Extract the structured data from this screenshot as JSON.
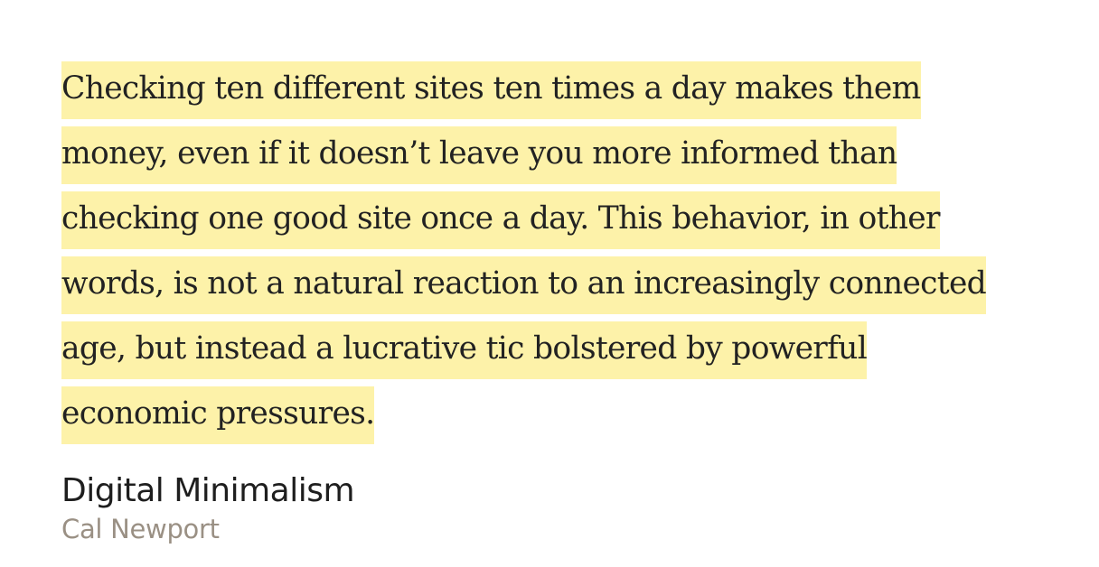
{
  "highlight": {
    "lines": [
      "Checking ten different sites ten times a day makes them",
      "money, even if it doesn’t leave you more informed than",
      "checking one good site once a day. This behavior, in other",
      "words, is not a natural reaction to an increasingly connected",
      "age, but instead a lucrative tic bolstered by powerful",
      "economic pressures."
    ],
    "highlight_color": "#fdf2a9"
  },
  "book": {
    "title": "Digital Minimalism",
    "author": "Cal Newport"
  }
}
